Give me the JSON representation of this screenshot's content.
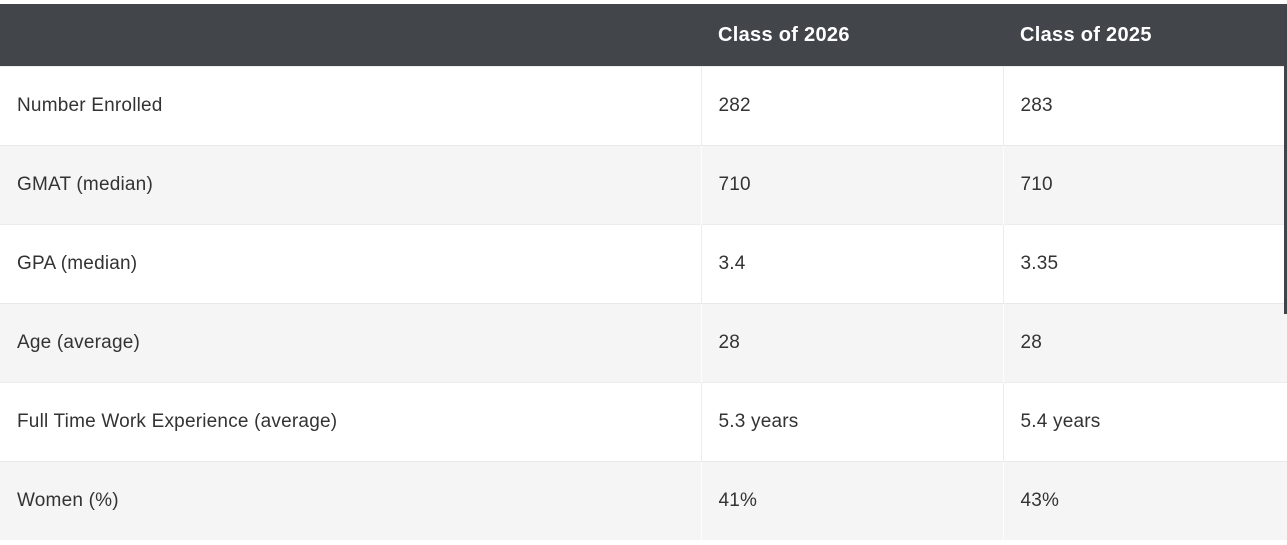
{
  "chart_data": {
    "type": "table",
    "columns": [
      "",
      "Class of 2026",
      "Class of 2025"
    ],
    "rows": [
      {
        "label": "Number Enrolled",
        "values": [
          "282",
          "283"
        ]
      },
      {
        "label": "GMAT (median)",
        "values": [
          "710",
          "710"
        ]
      },
      {
        "label": "GPA (median)",
        "values": [
          "3.4",
          "3.35"
        ]
      },
      {
        "label": "Age (average)",
        "values": [
          "28",
          "28"
        ]
      },
      {
        "label": "Full Time Work Experience (average)",
        "values": [
          "5.3 years",
          "5.4 years"
        ]
      },
      {
        "label": "Women (%)",
        "values": [
          "41%",
          "43%"
        ]
      }
    ],
    "layout": {
      "striped_rows": "even rows shaded",
      "header_position": "top",
      "grid": "horizontal borders + vertical dividers between value columns"
    }
  },
  "colors": {
    "header_bg": "#42464b",
    "header_text": "#ffffff",
    "row_stripe_bg": "#f5f5f5",
    "row_bg": "#ffffff",
    "body_text": "#333333",
    "divider": "#ececec",
    "right_edge_line": "#3f444a"
  }
}
